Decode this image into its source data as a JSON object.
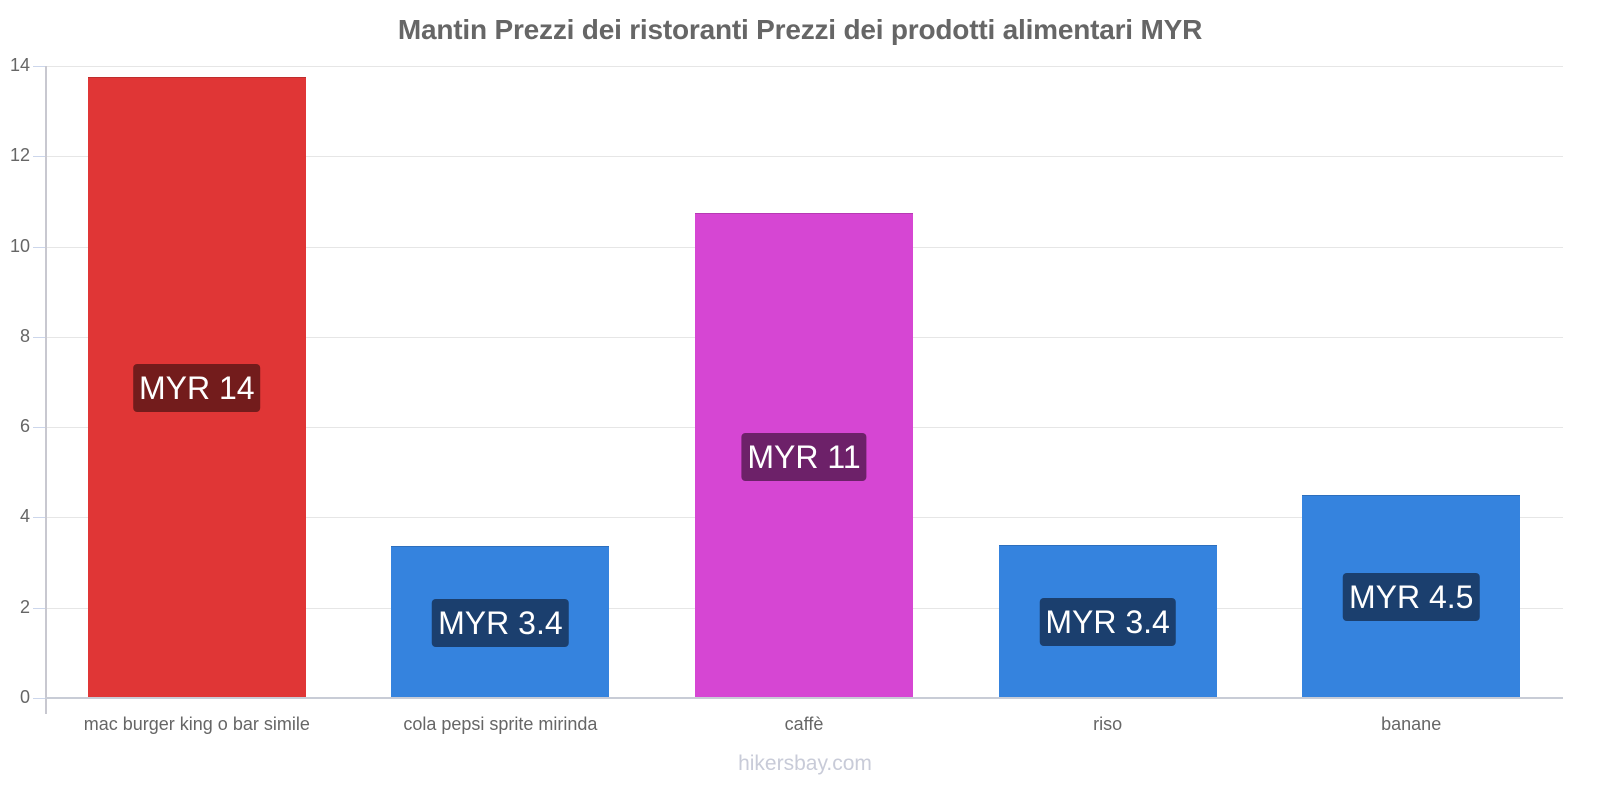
{
  "title": "Mantin Prezzi dei ristoranti Prezzi dei prodotti alimentari MYR",
  "watermark": "hikersbay.com",
  "y_ticks": [
    "0",
    "2",
    "4",
    "6",
    "8",
    "10",
    "12",
    "14"
  ],
  "bars": [
    {
      "category": "mac burger king o bar simile",
      "value": 13.76,
      "label": "MYR 14",
      "color": "#e03636",
      "label_bg": "#731c1c"
    },
    {
      "category": "cola pepsi sprite mirinda",
      "value": 3.37,
      "label": "MYR 3.4",
      "color": "#3583de",
      "label_bg": "#1b3f6e"
    },
    {
      "category": "caffè",
      "value": 10.74,
      "label": "MYR 11",
      "color": "#d646d3",
      "label_bg": "#6d2169"
    },
    {
      "category": "riso",
      "value": 3.39,
      "label": "MYR 3.4",
      "color": "#3583de",
      "label_bg": "#1b3f6e"
    },
    {
      "category": "banane",
      "value": 4.5,
      "label": "MYR 4.5",
      "color": "#3583de",
      "label_bg": "#1b3f6e"
    }
  ],
  "chart_data": {
    "type": "bar",
    "title": "Mantin Prezzi dei ristoranti Prezzi dei prodotti alimentari MYR",
    "categories": [
      "mac burger king o bar simile",
      "cola pepsi sprite mirinda",
      "caffè",
      "riso",
      "banane"
    ],
    "values": [
      13.76,
      3.37,
      10.74,
      3.39,
      4.5
    ],
    "data_labels": [
      "MYR 14",
      "MYR 3.4",
      "MYR 11",
      "MYR 3.4",
      "MYR 4.5"
    ],
    "colors": [
      "#e03636",
      "#3583de",
      "#d646d3",
      "#3583de",
      "#3583de"
    ],
    "xlabel": "",
    "ylabel": "",
    "ylim": [
      0,
      14
    ],
    "y_ticks": [
      0,
      2,
      4,
      6,
      8,
      10,
      12,
      14
    ],
    "grid": true,
    "legend": "none",
    "watermark": "hikersbay.com"
  }
}
